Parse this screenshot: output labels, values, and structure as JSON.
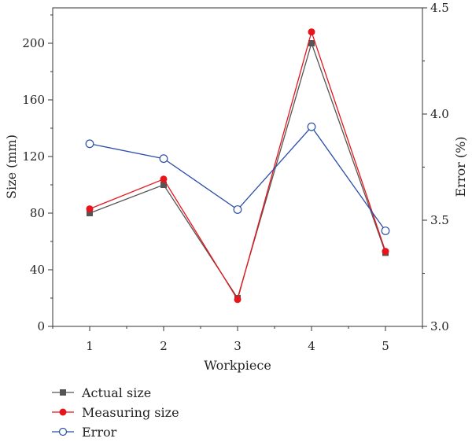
{
  "chart_data": {
    "type": "line",
    "xlabel": "Workpiece",
    "ylabel_left": "Size (mm)",
    "ylabel_right": "Error (%)",
    "x": [
      1,
      2,
      3,
      4,
      5
    ],
    "x_ticks": [
      "1",
      "2",
      "3",
      "4",
      "5"
    ],
    "xlim": [
      0.5,
      5.5
    ],
    "ylim_left": [
      0,
      225
    ],
    "ylim_right": [
      3.0,
      4.5
    ],
    "y_ticks_left": [
      "0",
      "40",
      "80",
      "120",
      "160",
      "200"
    ],
    "y_ticks_right": [
      "3.0",
      "3.5",
      "4.0",
      "4.5"
    ],
    "grid": false,
    "legend_position": "bottom-left",
    "series": [
      {
        "name": "Actual size",
        "axis": "left",
        "marker": "square",
        "color": "#555555",
        "values": [
          80,
          100,
          20,
          200,
          52
        ]
      },
      {
        "name": "Measuring size",
        "axis": "left",
        "marker": "filled-circle",
        "color": "#e8141c",
        "values": [
          83,
          104,
          19,
          208,
          53
        ]
      },
      {
        "name": "Error",
        "axis": "right",
        "marker": "open-circle",
        "color": "#2b4ea8",
        "values": [
          3.86,
          3.79,
          3.55,
          3.94,
          3.45
        ]
      }
    ]
  }
}
